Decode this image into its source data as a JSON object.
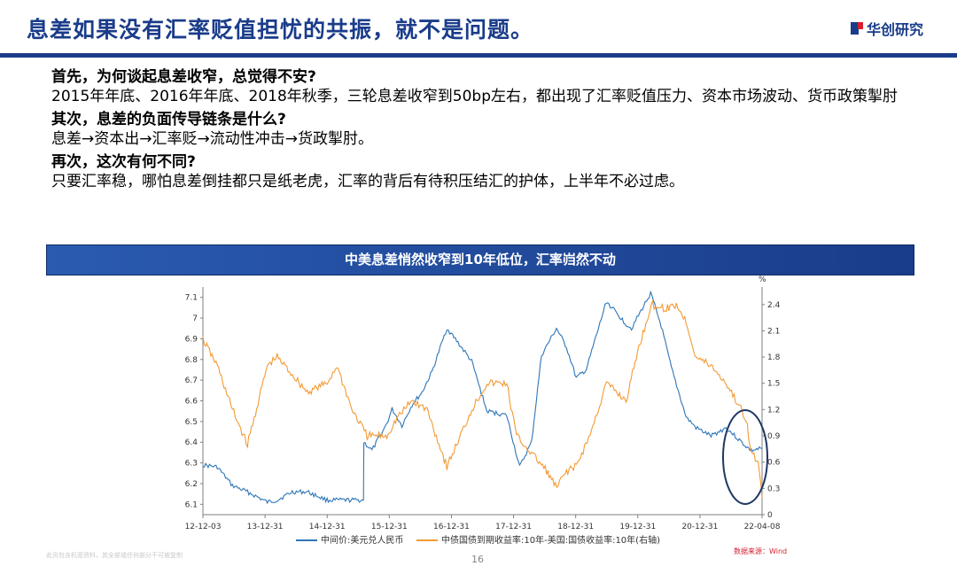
{
  "slide": {
    "title": "息差如果没有汇率贬值担忧的共振，就不是问题。",
    "logo_text": "华创研究",
    "sections": [
      {
        "heading": "首先，为何谈起息差收窄，总觉得不安?",
        "text": "2015年年底、2016年年底、2018年秋季，三轮息差收窄到50bp左右，都出现了汇率贬值压力、资本市场波动、货币政策掣肘"
      },
      {
        "heading": "其次，息差的负面传导链条是什么?",
        "text": "息差→资本出→汇率贬→流动性冲击→货政掣肘。"
      },
      {
        "heading": "再次，这次有何不同?",
        "text": "只要汇率稳，哪怕息差倒挂都只是纸老虎，汇率的背后有待积压结汇的护体，上半年不必过虑。"
      }
    ],
    "banner": "中美息差悄然收窄到10年低位，汇率岿然不动",
    "footnote": "此页包含机密资料，其全部或任何部分不可被复制",
    "page_number": "16",
    "source": "数据来源：Wind",
    "colors": {
      "navy": "#1a3c8a",
      "red": "#d6202f",
      "blue_series": "#2e75b6",
      "orange_series": "#f39a34",
      "circle": "#1f3864"
    }
  },
  "chart_data": {
    "type": "line",
    "x_tick_labels": [
      "12-12-03",
      "13-12-31",
      "14-12-31",
      "15-12-31",
      "16-12-31",
      "17-12-31",
      "18-12-31",
      "19-12-31",
      "20-12-31",
      "22-04-08"
    ],
    "x_range": [
      "2012-12-03",
      "2022-04-08"
    ],
    "left_axis": {
      "range": [
        6.05,
        7.15
      ],
      "ticks": [
        6.1,
        6.2,
        6.3,
        6.4,
        6.5,
        6.6,
        6.7,
        6.8,
        6.9,
        7,
        7.1
      ]
    },
    "right_axis": {
      "label": "%",
      "range": [
        0,
        2.6
      ],
      "ticks": [
        0,
        0.3,
        0.6,
        0.9,
        1.2,
        1.5,
        1.8,
        2.1,
        2.4
      ]
    },
    "series": [
      {
        "name": "中间价:美元兑人民币",
        "axis": "left",
        "color": "#2e75b6",
        "points": [
          [
            "2012-12-03",
            6.29
          ],
          [
            "2013-03-01",
            6.28
          ],
          [
            "2013-06-01",
            6.19
          ],
          [
            "2013-09-01",
            6.16
          ],
          [
            "2013-12-31",
            6.11
          ],
          [
            "2014-03-01",
            6.12
          ],
          [
            "2014-06-01",
            6.16
          ],
          [
            "2014-09-01",
            6.16
          ],
          [
            "2014-12-31",
            6.12
          ],
          [
            "2015-05-01",
            6.12
          ],
          [
            "2015-08-10",
            6.12
          ],
          [
            "2015-08-12",
            6.4
          ],
          [
            "2015-10-01",
            6.36
          ],
          [
            "2015-12-31",
            6.49
          ],
          [
            "2016-02-01",
            6.56
          ],
          [
            "2016-04-01",
            6.48
          ],
          [
            "2016-06-01",
            6.58
          ],
          [
            "2016-08-01",
            6.64
          ],
          [
            "2016-10-01",
            6.74
          ],
          [
            "2016-12-31",
            6.95
          ],
          [
            "2017-03-01",
            6.89
          ],
          [
            "2017-06-01",
            6.79
          ],
          [
            "2017-09-01",
            6.55
          ],
          [
            "2017-12-31",
            6.53
          ],
          [
            "2018-03-20",
            6.28
          ],
          [
            "2018-06-01",
            6.4
          ],
          [
            "2018-08-01",
            6.82
          ],
          [
            "2018-10-31",
            6.95
          ],
          [
            "2018-12-31",
            6.86
          ],
          [
            "2019-03-01",
            6.71
          ],
          [
            "2019-05-01",
            6.75
          ],
          [
            "2019-09-01",
            7.08
          ],
          [
            "2019-12-31",
            6.97
          ],
          [
            "2020-02-01",
            6.95
          ],
          [
            "2020-05-28",
            7.12
          ],
          [
            "2020-08-01",
            6.96
          ],
          [
            "2020-10-01",
            6.76
          ],
          [
            "2020-12-31",
            6.52
          ],
          [
            "2021-03-01",
            6.47
          ],
          [
            "2021-06-01",
            6.43
          ],
          [
            "2021-09-01",
            6.47
          ],
          [
            "2021-12-31",
            6.38
          ],
          [
            "2022-02-01",
            6.36
          ],
          [
            "2022-04-08",
            6.37
          ]
        ]
      },
      {
        "name": "中债国债到期收益率:10年-美国:国债收益率:10年(右轴)",
        "axis": "right",
        "color": "#f39a34",
        "points": [
          [
            "2012-12-03",
            2.0
          ],
          [
            "2013-03-01",
            1.7
          ],
          [
            "2013-06-01",
            1.2
          ],
          [
            "2013-09-01",
            0.8
          ],
          [
            "2013-12-31",
            1.7
          ],
          [
            "2014-03-01",
            1.8
          ],
          [
            "2014-06-01",
            1.6
          ],
          [
            "2014-09-01",
            1.4
          ],
          [
            "2014-12-31",
            1.5
          ],
          [
            "2015-03-01",
            1.7
          ],
          [
            "2015-06-01",
            1.2
          ],
          [
            "2015-09-01",
            0.9
          ],
          [
            "2015-12-31",
            0.9
          ],
          [
            "2016-03-01",
            1.1
          ],
          [
            "2016-06-01",
            1.3
          ],
          [
            "2016-09-01",
            1.2
          ],
          [
            "2016-12-31",
            0.55
          ],
          [
            "2017-03-01",
            0.8
          ],
          [
            "2017-06-01",
            1.2
          ],
          [
            "2017-09-01",
            1.5
          ],
          [
            "2017-12-31",
            1.5
          ],
          [
            "2018-03-01",
            0.9
          ],
          [
            "2018-06-01",
            0.7
          ],
          [
            "2018-09-01",
            0.5
          ],
          [
            "2018-11-01",
            0.3
          ],
          [
            "2018-12-31",
            0.5
          ],
          [
            "2019-03-01",
            0.55
          ],
          [
            "2019-06-01",
            0.95
          ],
          [
            "2019-09-01",
            1.5
          ],
          [
            "2019-12-31",
            1.3
          ],
          [
            "2020-03-01",
            1.8
          ],
          [
            "2020-06-01",
            2.4
          ],
          [
            "2020-09-01",
            2.35
          ],
          [
            "2020-11-01",
            2.4
          ],
          [
            "2020-12-31",
            2.2
          ],
          [
            "2021-03-01",
            1.8
          ],
          [
            "2021-06-01",
            1.7
          ],
          [
            "2021-09-01",
            1.5
          ],
          [
            "2021-12-31",
            1.1
          ],
          [
            "2022-02-01",
            0.7
          ],
          [
            "2022-03-15",
            0.6
          ],
          [
            "2022-04-08",
            0.2
          ]
        ]
      }
    ],
    "legend": "bottom",
    "grid": false,
    "annotation": "ellipse highlighting latest period near 22-04-08"
  }
}
